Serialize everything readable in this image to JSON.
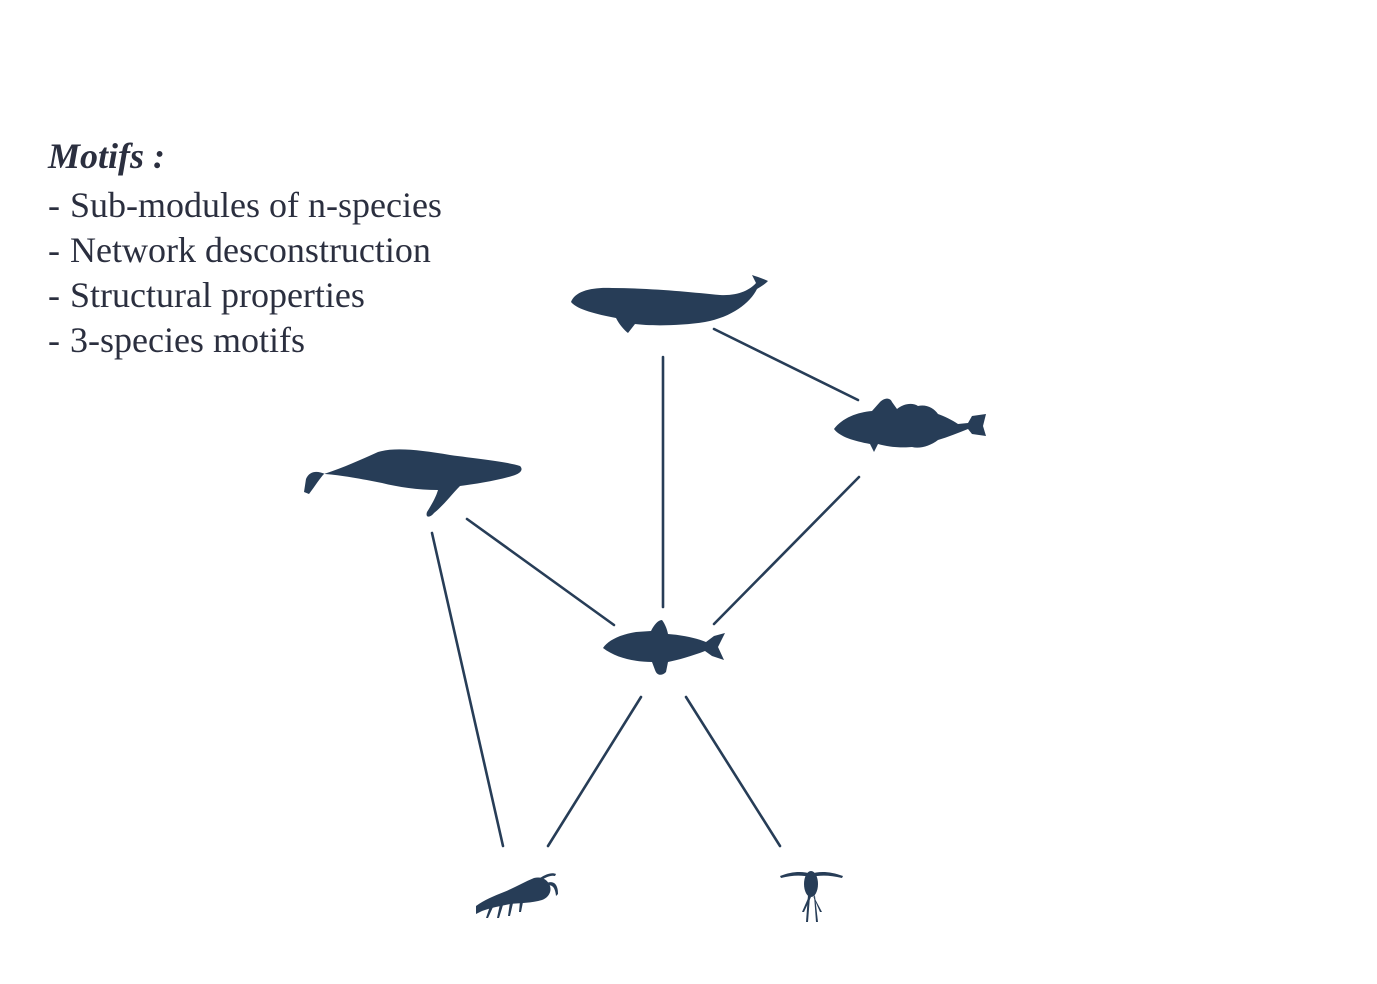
{
  "title": "Motifs :",
  "bullets": [
    "Sub-modules of n-species",
    "Network desconstruction",
    "Structural properties",
    "3-species motifs"
  ],
  "colors": {
    "text": "#2b2f3f",
    "silhouette": "#273d57"
  },
  "nodes": [
    {
      "id": "beluga",
      "icon": "beluga-whale-icon"
    },
    {
      "id": "cod",
      "icon": "cod-icon"
    },
    {
      "id": "humpback",
      "icon": "humpback-whale-icon"
    },
    {
      "id": "capelin",
      "icon": "capelin-icon"
    },
    {
      "id": "krill",
      "icon": "krill-icon"
    },
    {
      "id": "copepod",
      "icon": "copepod-icon"
    }
  ],
  "links": [
    {
      "from": "beluga",
      "to": "capelin"
    },
    {
      "from": "beluga",
      "to": "cod"
    },
    {
      "from": "cod",
      "to": "capelin"
    },
    {
      "from": "humpback",
      "to": "capelin"
    },
    {
      "from": "humpback",
      "to": "krill"
    },
    {
      "from": "capelin",
      "to": "krill"
    },
    {
      "from": "capelin",
      "to": "copepod"
    }
  ]
}
